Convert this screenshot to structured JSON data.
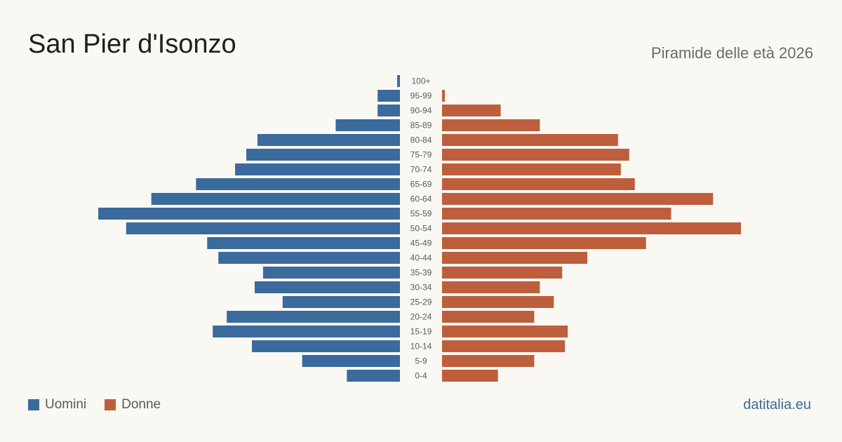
{
  "header": {
    "title": "San Pier d'Isonzo",
    "subtitle": "Piramide delle età 2026"
  },
  "legend": {
    "men_label": "Uomini",
    "women_label": "Donne"
  },
  "footer": {
    "source": "datitalia.eu"
  },
  "colors": {
    "men": "#3b6a9c",
    "women": "#bd5e3c"
  },
  "chart_data": {
    "type": "bar",
    "orientation": "horizontal",
    "title": "",
    "categories": [
      "100+",
      "95-99",
      "90-94",
      "85-89",
      "80-84",
      "75-79",
      "70-74",
      "65-69",
      "60-64",
      "55-59",
      "50-54",
      "45-49",
      "40-44",
      "35-39",
      "30-34",
      "25-29",
      "20-24",
      "15-19",
      "10-14",
      "5-9",
      "0-4"
    ],
    "series": [
      {
        "name": "Uomini",
        "values": [
          1,
          8,
          8,
          23,
          51,
          55,
          59,
          73,
          89,
          108,
          98,
          69,
          65,
          49,
          52,
          42,
          62,
          67,
          53,
          35,
          19
        ]
      },
      {
        "name": "Donne",
        "values": [
          0,
          1,
          21,
          35,
          63,
          67,
          64,
          69,
          97,
          82,
          107,
          73,
          52,
          43,
          35,
          40,
          33,
          45,
          44,
          33,
          20
        ]
      }
    ],
    "legend": "bottom-left",
    "grid": false
  }
}
